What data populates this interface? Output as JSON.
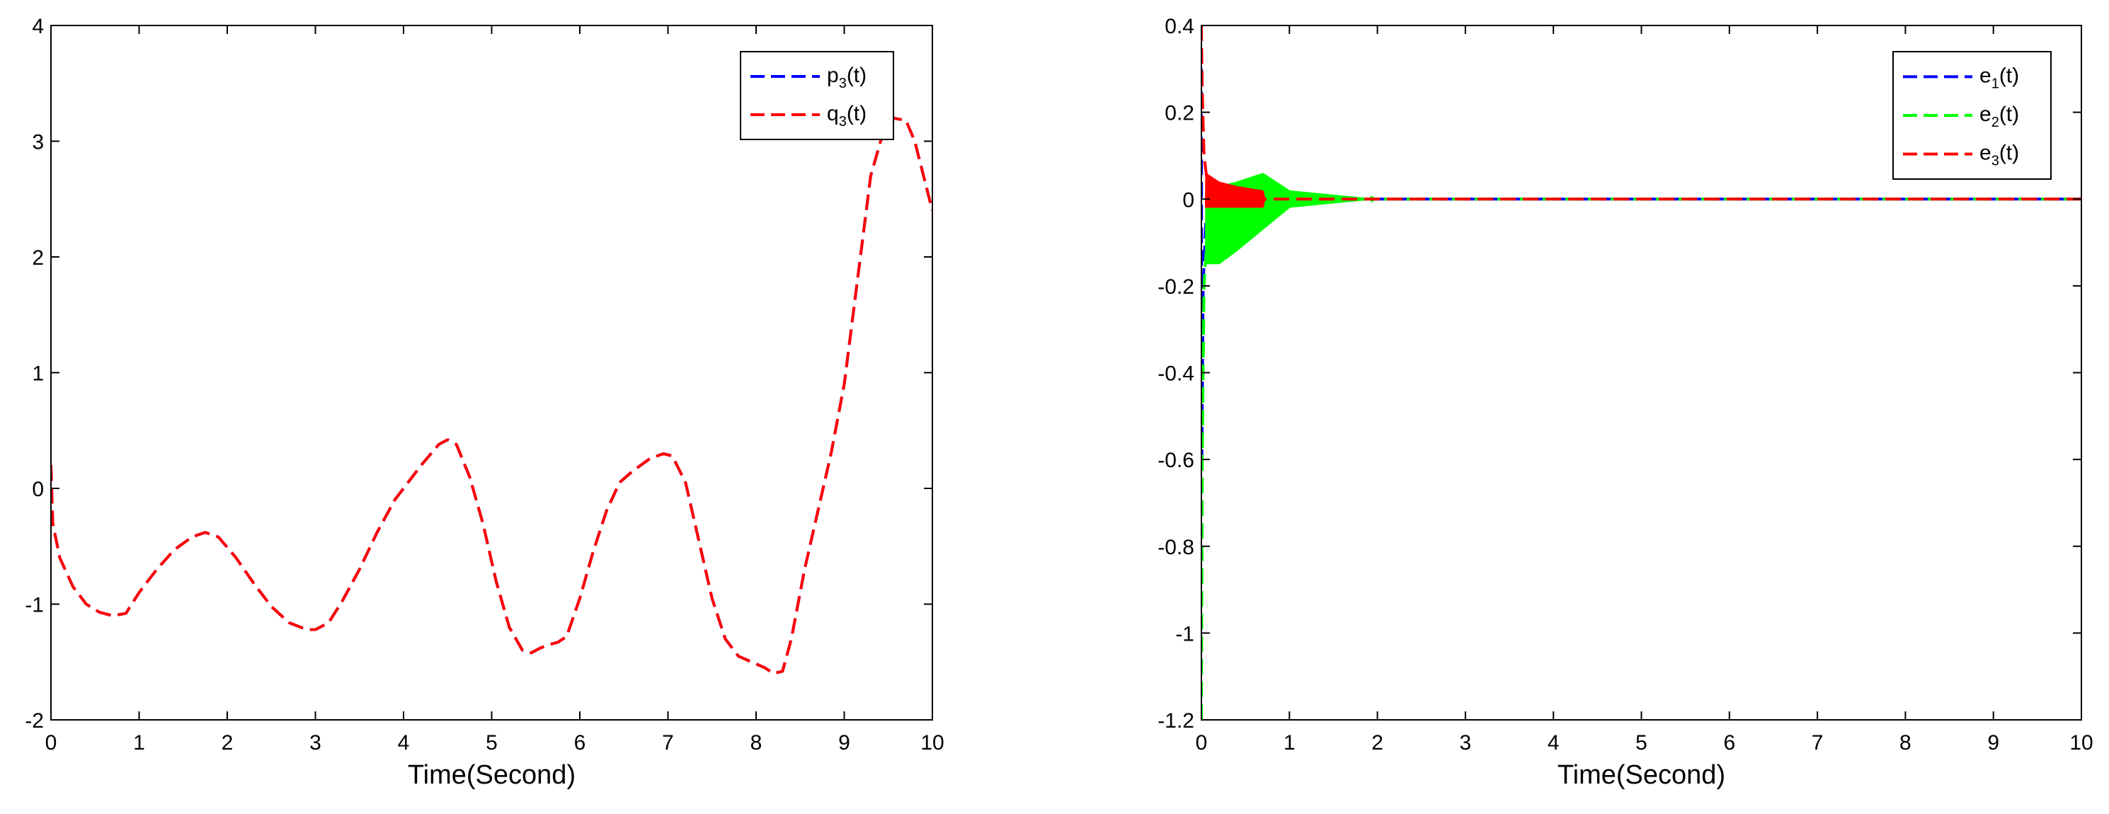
{
  "chart_data": [
    {
      "type": "line",
      "xlabel": "Time(Second)",
      "ylabel": "",
      "xlim": [
        0,
        10
      ],
      "ylim": [
        -2,
        4
      ],
      "xticks": [
        "0",
        "1",
        "2",
        "3",
        "4",
        "5",
        "6",
        "7",
        "8",
        "9",
        "10"
      ],
      "yticks": [
        "-2",
        "-1",
        "0",
        "1",
        "2",
        "3",
        "4"
      ],
      "legend_position": "top-right",
      "legend": [
        {
          "base": "p",
          "sub": "3",
          "suffix": "(t)",
          "color": "#0000ff",
          "dash": "dashed"
        },
        {
          "base": "q",
          "sub": "3",
          "suffix": "(t)",
          "color": "#ff0000",
          "dash": "dashed"
        }
      ],
      "series": [
        {
          "name": "p3(t)",
          "color": "#0000ff",
          "x": [
            0,
            0.02,
            0.1,
            0.25,
            0.4,
            0.55,
            0.7,
            0.85,
            1.0,
            1.2,
            1.4,
            1.6,
            1.75,
            1.9,
            2.1,
            2.3,
            2.5,
            2.7,
            2.9,
            3.0,
            3.15,
            3.3,
            3.5,
            3.7,
            3.9,
            4.0,
            4.2,
            4.4,
            4.5,
            4.6,
            4.75,
            4.9,
            5.05,
            5.2,
            5.35,
            5.45,
            5.55,
            5.65,
            5.75,
            5.85,
            6.0,
            6.15,
            6.3,
            6.45,
            6.6,
            6.8,
            6.95,
            7.05,
            7.2,
            7.35,
            7.5,
            7.65,
            7.8,
            7.95,
            8.1,
            8.2,
            8.3,
            8.4,
            8.55,
            8.7,
            8.85,
            9.0,
            9.15,
            9.3,
            9.45,
            9.55,
            9.7,
            9.8,
            9.9,
            10.0
          ],
          "y": [
            0.2,
            -0.3,
            -0.6,
            -0.85,
            -1.0,
            -1.07,
            -1.1,
            -1.08,
            -0.9,
            -0.7,
            -0.53,
            -0.42,
            -0.38,
            -0.42,
            -0.6,
            -0.82,
            -1.02,
            -1.16,
            -1.22,
            -1.22,
            -1.16,
            -0.98,
            -0.7,
            -0.38,
            -0.1,
            0.0,
            0.2,
            0.38,
            0.42,
            0.38,
            0.1,
            -0.3,
            -0.8,
            -1.2,
            -1.4,
            -1.42,
            -1.38,
            -1.35,
            -1.33,
            -1.28,
            -0.95,
            -0.55,
            -0.2,
            0.05,
            0.15,
            0.26,
            0.3,
            0.28,
            0.05,
            -0.45,
            -0.95,
            -1.3,
            -1.45,
            -1.5,
            -1.55,
            -1.6,
            -1.58,
            -1.3,
            -0.7,
            -0.2,
            0.3,
            0.9,
            1.8,
            2.7,
            3.1,
            3.2,
            3.18,
            3.0,
            2.7,
            2.4
          ]
        },
        {
          "name": "q3(t)",
          "color": "#ff0000",
          "x": [
            0,
            0.02,
            0.1,
            0.25,
            0.4,
            0.55,
            0.7,
            0.85,
            1.0,
            1.2,
            1.4,
            1.6,
            1.75,
            1.9,
            2.1,
            2.3,
            2.5,
            2.7,
            2.9,
            3.0,
            3.15,
            3.3,
            3.5,
            3.7,
            3.9,
            4.0,
            4.2,
            4.4,
            4.5,
            4.6,
            4.75,
            4.9,
            5.05,
            5.2,
            5.35,
            5.45,
            5.55,
            5.65,
            5.75,
            5.85,
            6.0,
            6.15,
            6.3,
            6.45,
            6.6,
            6.8,
            6.95,
            7.05,
            7.2,
            7.35,
            7.5,
            7.65,
            7.8,
            7.95,
            8.1,
            8.2,
            8.3,
            8.4,
            8.55,
            8.7,
            8.85,
            9.0,
            9.15,
            9.3,
            9.45,
            9.55,
            9.7,
            9.8,
            9.9,
            10.0
          ],
          "y": [
            0.2,
            -0.3,
            -0.6,
            -0.85,
            -1.0,
            -1.07,
            -1.1,
            -1.08,
            -0.9,
            -0.7,
            -0.53,
            -0.42,
            -0.38,
            -0.42,
            -0.6,
            -0.82,
            -1.02,
            -1.16,
            -1.22,
            -1.22,
            -1.16,
            -0.98,
            -0.7,
            -0.38,
            -0.1,
            0.0,
            0.2,
            0.38,
            0.42,
            0.38,
            0.1,
            -0.3,
            -0.8,
            -1.2,
            -1.4,
            -1.42,
            -1.38,
            -1.35,
            -1.33,
            -1.28,
            -0.95,
            -0.55,
            -0.2,
            0.05,
            0.15,
            0.26,
            0.3,
            0.28,
            0.05,
            -0.45,
            -0.95,
            -1.3,
            -1.45,
            -1.5,
            -1.55,
            -1.6,
            -1.58,
            -1.3,
            -0.7,
            -0.2,
            0.3,
            0.9,
            1.8,
            2.7,
            3.1,
            3.2,
            3.18,
            3.0,
            2.7,
            2.4
          ]
        }
      ]
    },
    {
      "type": "line",
      "xlabel": "Time(Second)",
      "ylabel": "",
      "xlim": [
        0,
        10
      ],
      "ylim": [
        -1.2,
        0.4
      ],
      "xticks": [
        "0",
        "1",
        "2",
        "3",
        "4",
        "5",
        "6",
        "7",
        "8",
        "9",
        "10"
      ],
      "yticks": [
        "-1.2",
        "-1",
        "-0.8",
        "-0.6",
        "-0.4",
        "-0.2",
        "0",
        "0.2",
        "0.4"
      ],
      "legend_position": "top-right",
      "legend": [
        {
          "base": "e",
          "sub": "1",
          "suffix": "(t)",
          "color": "#0000ff",
          "dash": "dashed"
        },
        {
          "base": "e",
          "sub": "2",
          "suffix": "(t)",
          "color": "#00ff00",
          "dash": "dashed"
        },
        {
          "base": "e",
          "sub": "3",
          "suffix": "(t)",
          "color": "#ff0000",
          "dash": "dashed"
        }
      ],
      "series": [
        {
          "name": "e1(t)",
          "color": "#0000ff",
          "x": [
            0,
            0.005,
            0.02,
            0.05,
            0.1,
            0.3,
            0.6,
            1.0,
            1.5,
            2.0,
            10.0
          ],
          "y": [
            0.3,
            -0.6,
            -0.2,
            -0.05,
            0.0,
            0.01,
            0.0,
            0.0,
            0.0,
            0.0,
            0.0
          ]
        },
        {
          "name": "e2(t)",
          "color": "#00ff00",
          "x": [
            0,
            0.01,
            0.03,
            0.06,
            0.1,
            0.15,
            0.3,
            0.5,
            0.7,
            1.0,
            1.5,
            2.0,
            10.0
          ],
          "y": [
            -1.2,
            -0.6,
            -0.2,
            -0.1,
            -0.05,
            0.02,
            0.0,
            0.0,
            0.0,
            0.0,
            0.0,
            0.0,
            0.0
          ],
          "envelope": {
            "x": [
              0.05,
              0.2,
              0.4,
              0.7,
              1.0,
              1.5,
              2.0
            ],
            "upper": [
              0.03,
              0.03,
              0.04,
              0.06,
              0.02,
              0.01,
              0.0
            ],
            "lower": [
              -0.15,
              -0.15,
              -0.12,
              -0.07,
              -0.02,
              -0.01,
              0.0
            ]
          }
        },
        {
          "name": "e3(t)",
          "color": "#ff0000",
          "x": [
            0,
            0.01,
            0.03,
            0.06,
            0.1,
            0.3,
            0.7,
            1.0,
            1.5,
            2.0,
            10.0
          ],
          "y": [
            0.4,
            0.25,
            0.1,
            0.05,
            0.03,
            0.02,
            0.0,
            0.0,
            0.0,
            0.0,
            0.0
          ],
          "envelope": {
            "x": [
              0.05,
              0.2,
              0.4,
              0.7,
              0.72
            ],
            "upper": [
              0.06,
              0.04,
              0.03,
              0.02,
              0.0
            ],
            "lower": [
              -0.02,
              -0.02,
              -0.02,
              -0.02,
              0.0
            ]
          }
        }
      ]
    }
  ]
}
